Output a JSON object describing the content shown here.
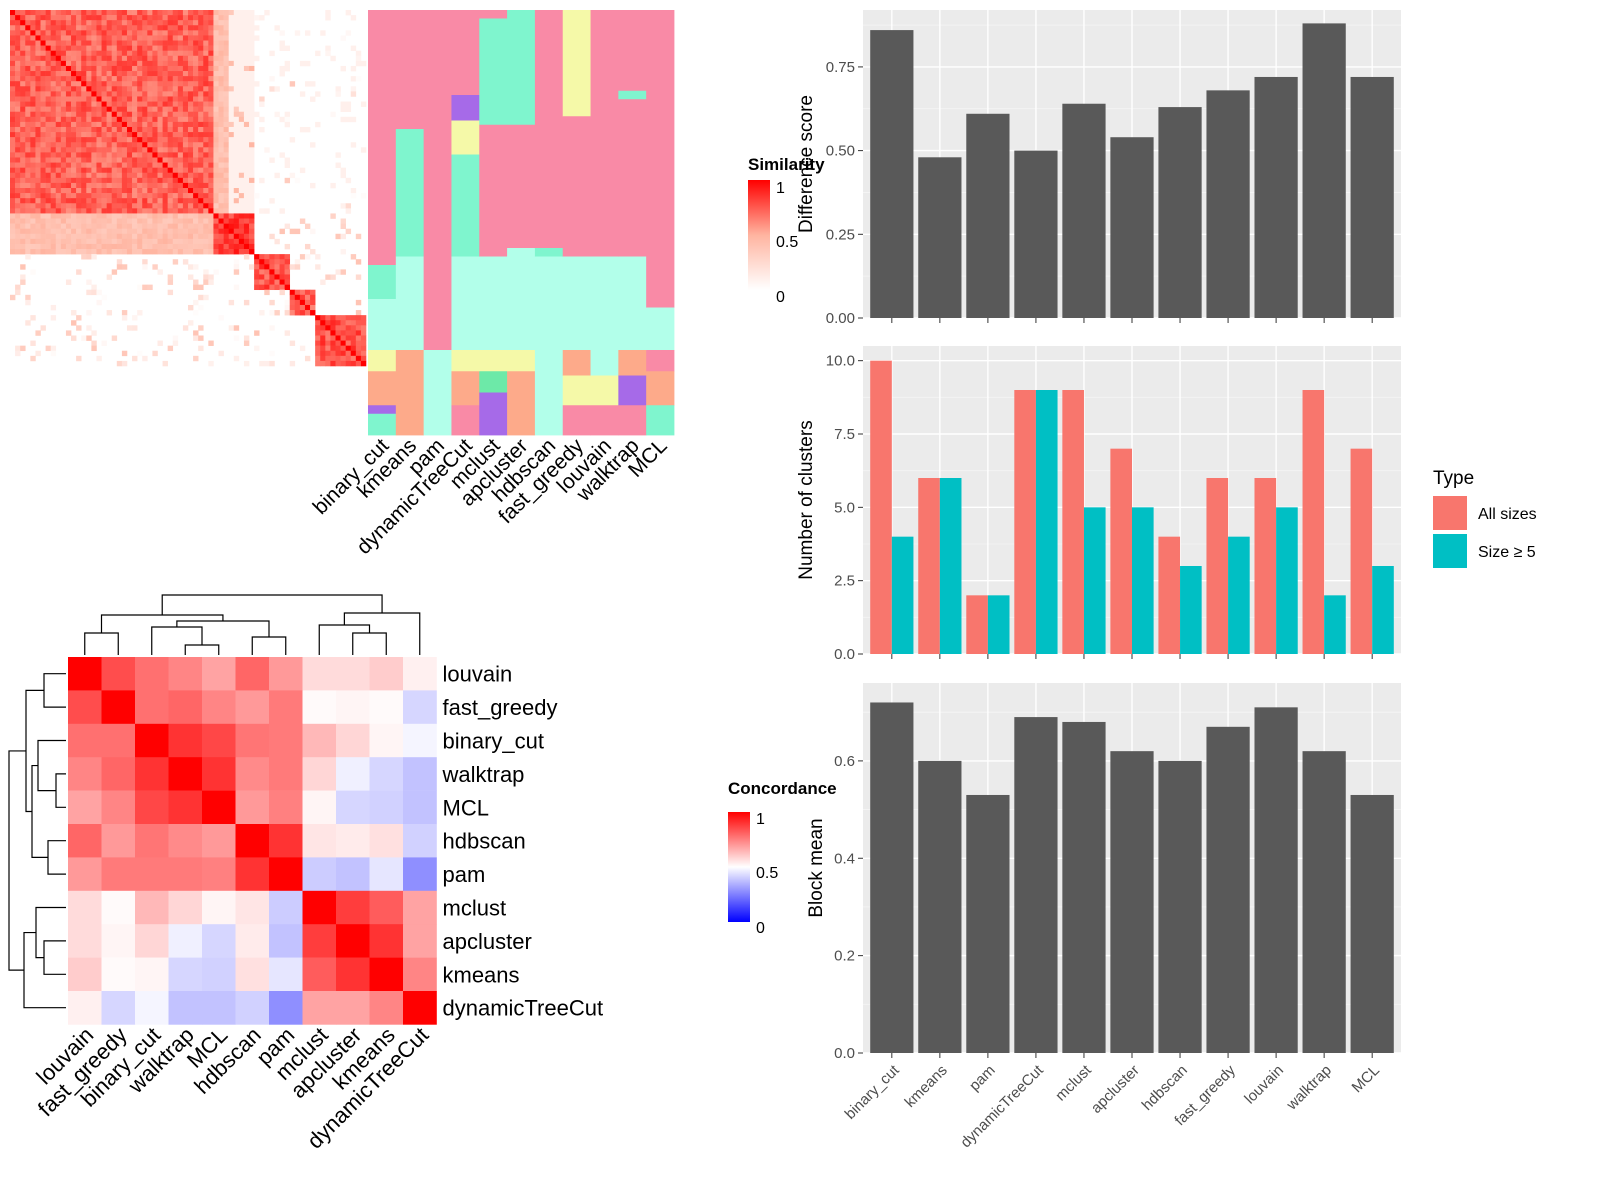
{
  "heatmap_top": {
    "sim_legend_title": "Similarity",
    "sim_legend_ticks": [
      "1",
      "0.5",
      "0"
    ],
    "method_labels": [
      "binary_cut",
      "kmeans",
      "pam",
      "dynamicTreeCut",
      "mclust",
      "apcluster",
      "hdbscan",
      "fast_greedy",
      "louvain",
      "walktrap",
      "MCL"
    ]
  },
  "concordance": {
    "legend_title": "Concordance",
    "legend_ticks": [
      "1",
      "0.5",
      "0"
    ],
    "order": [
      "louvain",
      "fast_greedy",
      "binary_cut",
      "walktrap",
      "MCL",
      "hdbscan",
      "pam",
      "mclust",
      "apcluster",
      "kmeans",
      "dynamicTreeCut"
    ],
    "matrix": [
      [
        1.0,
        0.85,
        0.78,
        0.74,
        0.68,
        0.8,
        0.7,
        0.57,
        0.57,
        0.6,
        0.53
      ],
      [
        0.85,
        1.0,
        0.78,
        0.8,
        0.74,
        0.7,
        0.76,
        0.51,
        0.52,
        0.51,
        0.42
      ],
      [
        0.78,
        0.78,
        1.0,
        0.9,
        0.86,
        0.77,
        0.76,
        0.64,
        0.58,
        0.52,
        0.48
      ],
      [
        0.74,
        0.8,
        0.9,
        1.0,
        0.9,
        0.73,
        0.76,
        0.58,
        0.47,
        0.42,
        0.38
      ],
      [
        0.68,
        0.74,
        0.86,
        0.9,
        1.0,
        0.7,
        0.75,
        0.52,
        0.42,
        0.41,
        0.38
      ],
      [
        0.8,
        0.7,
        0.77,
        0.73,
        0.7,
        1.0,
        0.9,
        0.55,
        0.54,
        0.56,
        0.41
      ],
      [
        0.7,
        0.76,
        0.76,
        0.76,
        0.75,
        0.9,
        1.0,
        0.4,
        0.38,
        0.45,
        0.28
      ],
      [
        0.57,
        0.51,
        0.64,
        0.58,
        0.52,
        0.55,
        0.4,
        1.0,
        0.88,
        0.82,
        0.68
      ],
      [
        0.57,
        0.52,
        0.58,
        0.47,
        0.42,
        0.54,
        0.38,
        0.88,
        1.0,
        0.9,
        0.68
      ],
      [
        0.6,
        0.51,
        0.52,
        0.42,
        0.41,
        0.56,
        0.45,
        0.82,
        0.9,
        1.0,
        0.74
      ],
      [
        0.53,
        0.42,
        0.48,
        0.38,
        0.38,
        0.41,
        0.28,
        0.68,
        0.68,
        0.74,
        1.0
      ]
    ]
  },
  "chart_data": [
    {
      "type": "bar",
      "categories": [
        "binary_cut",
        "kmeans",
        "pam",
        "dynamicTreeCut",
        "mclust",
        "apcluster",
        "hdbscan",
        "fast_greedy",
        "louvain",
        "walktrap",
        "MCL"
      ],
      "values": [
        0.86,
        0.48,
        0.61,
        0.5,
        0.64,
        0.54,
        0.63,
        0.68,
        0.72,
        0.88,
        0.72
      ],
      "ylabel": "Difference score",
      "ylim": [
        0,
        0.92
      ],
      "yticks": [
        "0.00",
        "0.25",
        "0.50",
        "0.75"
      ],
      "ytick_values": [
        0,
        0.25,
        0.5,
        0.75
      ],
      "grid": true
    },
    {
      "type": "bar",
      "categories": [
        "binary_cut",
        "kmeans",
        "pam",
        "dynamicTreeCut",
        "mclust",
        "apcluster",
        "hdbscan",
        "fast_greedy",
        "louvain",
        "walktrap",
        "MCL"
      ],
      "series": [
        {
          "name": "All sizes",
          "color": "#F8766D",
          "values": [
            10,
            6,
            2,
            9,
            9,
            7,
            4,
            6,
            6,
            9,
            7
          ]
        },
        {
          "name": "Size ≥ 5",
          "color": "#00BFC4",
          "values": [
            4,
            6,
            2,
            9,
            5,
            5,
            3,
            4,
            5,
            2,
            3
          ]
        }
      ],
      "ylabel": "Number of clusters",
      "ylim": [
        0,
        10.5
      ],
      "yticks": [
        "0.0",
        "2.5",
        "5.0",
        "7.5",
        "10.0"
      ],
      "ytick_values": [
        0,
        2.5,
        5,
        7.5,
        10
      ],
      "legend_title": "Type",
      "legend_position": "right",
      "grid": true
    },
    {
      "type": "bar",
      "categories": [
        "binary_cut",
        "kmeans",
        "pam",
        "dynamicTreeCut",
        "mclust",
        "apcluster",
        "hdbscan",
        "fast_greedy",
        "louvain",
        "walktrap",
        "MCL"
      ],
      "values": [
        0.72,
        0.6,
        0.53,
        0.69,
        0.68,
        0.62,
        0.6,
        0.67,
        0.71,
        0.62,
        0.53
      ],
      "ylabel": "Block mean",
      "ylim": [
        0,
        0.76
      ],
      "yticks": [
        "0.0",
        "0.2",
        "0.4",
        "0.6"
      ],
      "ytick_values": [
        0,
        0.2,
        0.4,
        0.6
      ],
      "grid": true
    }
  ]
}
